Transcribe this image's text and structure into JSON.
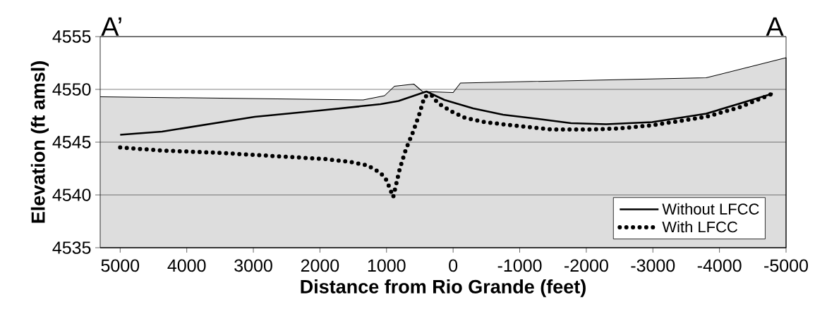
{
  "chart_data": {
    "type": "line",
    "xlabel": "Distance from Rio Grande (feet)",
    "ylabel": "Elevation (ft amsl)",
    "annotations": [
      "A’",
      "A"
    ],
    "series": [
      {
        "type": "area",
        "color": "#dddddd",
        "x": [
          5300,
          1350,
          1030,
          880,
          590,
          460,
          0,
          -110,
          -3800,
          -5000
        ],
        "values": [
          4549.3,
          4549.0,
          4549.4,
          4550.3,
          4550.5,
          4549.8,
          4549.7,
          4550.6,
          4551.1,
          4553.0
        ]
      },
      {
        "name": "Without LFCC",
        "color": "#000000",
        "line_style": "solid",
        "x": [
          5000,
          4370,
          2980,
          2000,
          1090,
          820,
          400,
          130,
          -300,
          -750,
          -1280,
          -1770,
          -2300,
          -2990,
          -3800,
          -4800
        ],
        "values": [
          4545.7,
          4546.0,
          4547.4,
          4548.0,
          4548.6,
          4548.9,
          4549.8,
          4549.0,
          4548.2,
          4547.6,
          4547.2,
          4546.8,
          4546.7,
          4546.9,
          4547.7,
          4549.6
        ]
      },
      {
        "name": "With LFCC",
        "color": "#000000",
        "line_style": "dotted",
        "x": [
          5000,
          4370,
          3550,
          2740,
          1920,
          1520,
          1290,
          1090,
          1000,
          900,
          800,
          710,
          600,
          510,
          430,
          330,
          230,
          20,
          -180,
          -470,
          -870,
          -1480,
          -2100,
          -2500,
          -2990,
          -3800,
          -4300,
          -4800
        ],
        "values": [
          4544.5,
          4544.2,
          4544.0,
          4543.7,
          4543.4,
          4543.1,
          4542.8,
          4542.1,
          4541.4,
          4539.8,
          4542.5,
          4544.3,
          4546.0,
          4547.6,
          4549.3,
          4549.5,
          4548.7,
          4547.9,
          4547.3,
          4546.9,
          4546.6,
          4546.2,
          4546.2,
          4546.3,
          4546.6,
          4547.4,
          4548.3,
          4549.6
        ]
      }
    ],
    "xlim": [
      5300,
      -5000
    ],
    "xticks": [
      5000,
      4000,
      3000,
      2000,
      1000,
      0,
      -1000,
      -2000,
      -3000,
      -4000,
      -5000
    ],
    "ylim": [
      4535,
      4555
    ],
    "yticks": [
      4535,
      4540,
      4545,
      4550,
      4555
    ],
    "grid": "y",
    "legend": "bottom right"
  }
}
